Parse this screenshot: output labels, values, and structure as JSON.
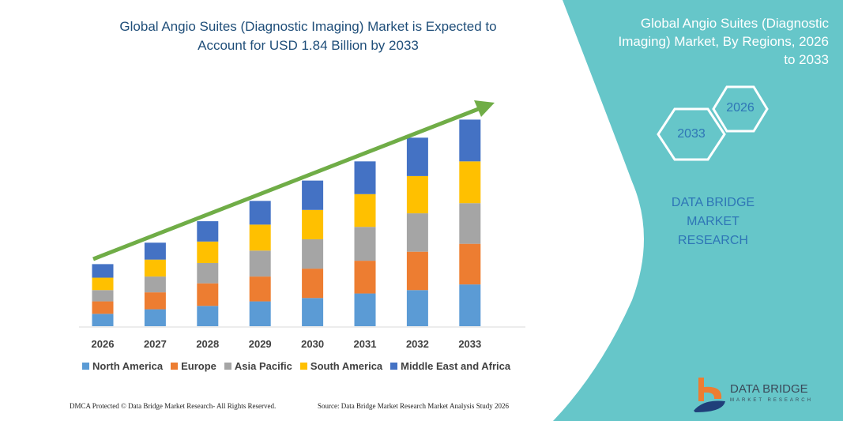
{
  "title": [
    "Global Angio Suites (Diagnostic Imaging) Market is Expected to",
    "Account for USD 1.84 Billion by 2033"
  ],
  "side_panel": {
    "title": [
      "Global Angio Suites (Diagnostic",
      "Imaging) Market, By Regions, 2026",
      "to 2033"
    ],
    "hex_start": "2026",
    "hex_end": "2033",
    "brand": [
      "DATA BRIDGE MARKET",
      "RESEARCH"
    ],
    "logo_text": "DATA BRIDGE",
    "logo_sub": "MARKET RESEARCH",
    "color": "#66c6c9"
  },
  "footer": {
    "left": "DMCA Protected © Data Bridge Market Research-  All Rights Reserved.",
    "right": "Source: Data Bridge Market Research  Market Analysis Study 2026"
  },
  "chart_data": {
    "type": "bar",
    "stacked": true,
    "title": "Global Angio Suites (Diagnostic Imaging) Market is Expected to Account for USD 1.84 Billion by 2033",
    "categories": [
      "2026",
      "2027",
      "2028",
      "2029",
      "2030",
      "2031",
      "2032",
      "2033"
    ],
    "series": [
      {
        "name": "North America",
        "color": "#5b9bd5",
        "values": [
          0.11,
          0.15,
          0.18,
          0.22,
          0.25,
          0.29,
          0.32,
          0.37
        ]
      },
      {
        "name": "Europe",
        "color": "#ed7d31",
        "values": [
          0.11,
          0.15,
          0.2,
          0.22,
          0.26,
          0.29,
          0.34,
          0.36
        ]
      },
      {
        "name": "Asia Pacific",
        "color": "#a5a5a5",
        "values": [
          0.1,
          0.14,
          0.18,
          0.23,
          0.26,
          0.3,
          0.34,
          0.36
        ]
      },
      {
        "name": "South America",
        "color": "#ffc000",
        "values": [
          0.11,
          0.15,
          0.19,
          0.23,
          0.26,
          0.29,
          0.33,
          0.37
        ]
      },
      {
        "name": "Middle East and Africa",
        "color": "#4472c4",
        "values": [
          0.12,
          0.15,
          0.18,
          0.21,
          0.26,
          0.29,
          0.34,
          0.37
        ]
      }
    ],
    "trend_arrow_color": "#70ad47",
    "legend_position": "bottom",
    "grid": false,
    "ylim": [
      0,
      1.84
    ]
  }
}
